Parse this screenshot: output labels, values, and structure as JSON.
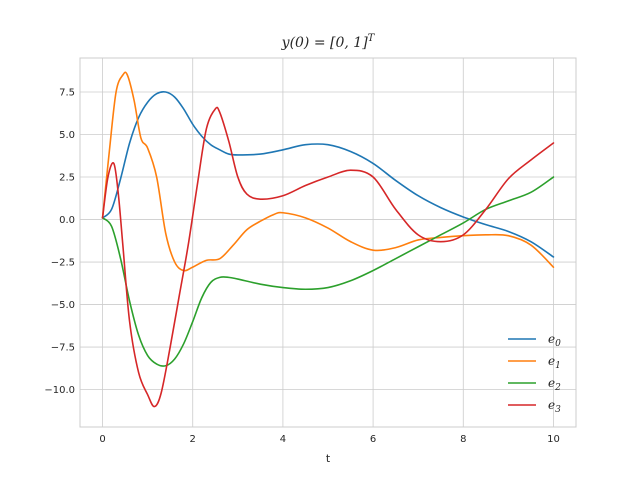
{
  "chart_data": {
    "type": "line",
    "title": "y(0) = [0, 1]^T",
    "title_parts": {
      "main": "y(0) = [0, 1]",
      "sup": "T"
    },
    "xlabel": "t",
    "ylabel": "",
    "xlim": [
      -0.5,
      10.5
    ],
    "ylim": [
      -12.2,
      9.5
    ],
    "xticks": [
      0,
      2,
      4,
      6,
      8,
      10
    ],
    "yticks": [
      7.5,
      5.0,
      2.5,
      0.0,
      -2.5,
      -5.0,
      -7.5,
      -10.0
    ],
    "ytick_labels": [
      "7.5",
      "5.0",
      "2.5",
      "0.0",
      "−2.5",
      "−5.0",
      "−7.5",
      "−10.0"
    ],
    "grid": true,
    "legend_position": "bottom-right",
    "series": [
      {
        "name": "e0",
        "base": "e",
        "sub": "0",
        "color": "#1f77b4",
        "x": [
          0,
          0.2,
          0.4,
          0.6,
          0.8,
          1.0,
          1.2,
          1.4,
          1.6,
          1.8,
          2.0,
          2.2,
          2.4,
          2.6,
          2.8,
          3.0,
          3.5,
          4.0,
          4.5,
          5.0,
          5.5,
          6.0,
          6.5,
          7.0,
          7.5,
          8.0,
          8.5,
          9.0,
          9.5,
          10.0
        ],
        "y": [
          0.1,
          0.6,
          2.4,
          4.5,
          6.0,
          6.9,
          7.4,
          7.5,
          7.2,
          6.5,
          5.6,
          4.9,
          4.4,
          4.1,
          3.85,
          3.8,
          3.85,
          4.1,
          4.4,
          4.4,
          4.0,
          3.3,
          2.3,
          1.4,
          0.7,
          0.15,
          -0.3,
          -0.7,
          -1.3,
          -2.2
        ]
      },
      {
        "name": "e1",
        "base": "e",
        "sub": "1",
        "color": "#ff7f0e",
        "x": [
          0,
          0.15,
          0.3,
          0.45,
          0.55,
          0.7,
          0.85,
          1.0,
          1.2,
          1.4,
          1.6,
          1.8,
          2.0,
          2.3,
          2.6,
          2.9,
          3.2,
          3.5,
          3.8,
          4.0,
          4.5,
          5.0,
          5.5,
          6.0,
          6.5,
          7.0,
          7.5,
          8.0,
          8.5,
          9.0,
          9.5,
          10.0
        ],
        "y": [
          0.1,
          4.0,
          7.5,
          8.5,
          8.5,
          7.0,
          4.8,
          4.2,
          2.5,
          -0.8,
          -2.5,
          -3.0,
          -2.8,
          -2.4,
          -2.3,
          -1.5,
          -0.6,
          -0.1,
          0.3,
          0.4,
          0.1,
          -0.5,
          -1.3,
          -1.8,
          -1.65,
          -1.2,
          -1.05,
          -0.95,
          -0.9,
          -0.95,
          -1.5,
          -2.8
        ]
      },
      {
        "name": "e2",
        "base": "e",
        "sub": "2",
        "color": "#2ca02c",
        "x": [
          0,
          0.2,
          0.4,
          0.6,
          0.8,
          1.0,
          1.2,
          1.4,
          1.6,
          1.8,
          2.0,
          2.2,
          2.4,
          2.6,
          2.8,
          3.0,
          3.5,
          4.0,
          4.5,
          5.0,
          5.5,
          6.0,
          6.5,
          7.0,
          7.5,
          8.0,
          8.5,
          9.0,
          9.5,
          10.0
        ],
        "y": [
          0.1,
          -0.4,
          -2.3,
          -4.8,
          -6.8,
          -8.0,
          -8.5,
          -8.6,
          -8.2,
          -7.3,
          -6.0,
          -4.6,
          -3.7,
          -3.4,
          -3.4,
          -3.5,
          -3.8,
          -4.0,
          -4.1,
          -4.0,
          -3.6,
          -3.0,
          -2.3,
          -1.6,
          -0.9,
          -0.2,
          0.6,
          1.1,
          1.6,
          2.5
        ]
      },
      {
        "name": "e3",
        "base": "e",
        "sub": "3",
        "color": "#d62728",
        "x": [
          0,
          0.12,
          0.25,
          0.35,
          0.45,
          0.6,
          0.8,
          1.0,
          1.15,
          1.3,
          1.5,
          1.7,
          1.9,
          2.1,
          2.3,
          2.5,
          2.6,
          2.8,
          3.0,
          3.2,
          3.5,
          4.0,
          4.5,
          5.0,
          5.5,
          6.0,
          6.5,
          7.0,
          7.5,
          8.0,
          8.5,
          9.0,
          9.5,
          10.0
        ],
        "y": [
          0.1,
          2.5,
          3.3,
          1.5,
          -1.5,
          -6.0,
          -9.0,
          -10.3,
          -11.0,
          -10.2,
          -7.5,
          -4.5,
          -1.5,
          2.0,
          5.3,
          6.5,
          6.3,
          4.6,
          2.5,
          1.5,
          1.2,
          1.4,
          2.0,
          2.5,
          2.9,
          2.5,
          0.6,
          -0.9,
          -1.3,
          -0.9,
          0.6,
          2.4,
          3.5,
          4.5
        ]
      }
    ]
  }
}
